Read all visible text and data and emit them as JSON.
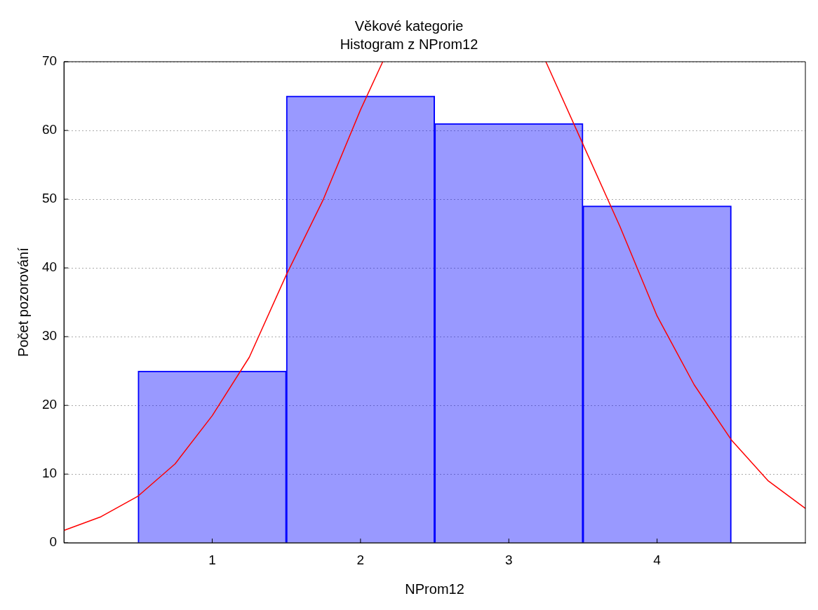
{
  "chart_data": {
    "type": "histogram",
    "title": "Věkové kategorie",
    "subtitle": "Histogram z NProm12",
    "xlabel": "NProm12",
    "ylabel": "Počet pozorování",
    "bins": [
      0.5,
      1.5,
      2.5,
      3.5,
      4.5
    ],
    "values": [
      25,
      65,
      61,
      49
    ],
    "color": "#0000ff",
    "series": [
      {
        "type": "line",
        "color": "#ff0000",
        "marker": "none",
        "x": [
          0,
          0.25,
          0.5,
          0.75,
          1,
          1.25,
          1.5,
          1.75,
          2,
          2.15,
          2.7,
          3.25,
          3.5,
          3.75,
          4,
          4.25,
          4.5,
          4.75,
          5
        ],
        "values": [
          1.8,
          3.8,
          6.8,
          11.5,
          18.5,
          27,
          39,
          50,
          63,
          70,
          null,
          70,
          58,
          46,
          33,
          23,
          15,
          9,
          5
        ]
      }
    ],
    "xlim": [
      0,
      5
    ],
    "xticks": [
      1,
      2,
      3,
      4
    ],
    "ylim": [
      0,
      70
    ],
    "yticks": [
      0,
      10,
      20,
      30,
      40,
      50,
      60,
      70
    ],
    "grid": "y",
    "legend": false
  }
}
